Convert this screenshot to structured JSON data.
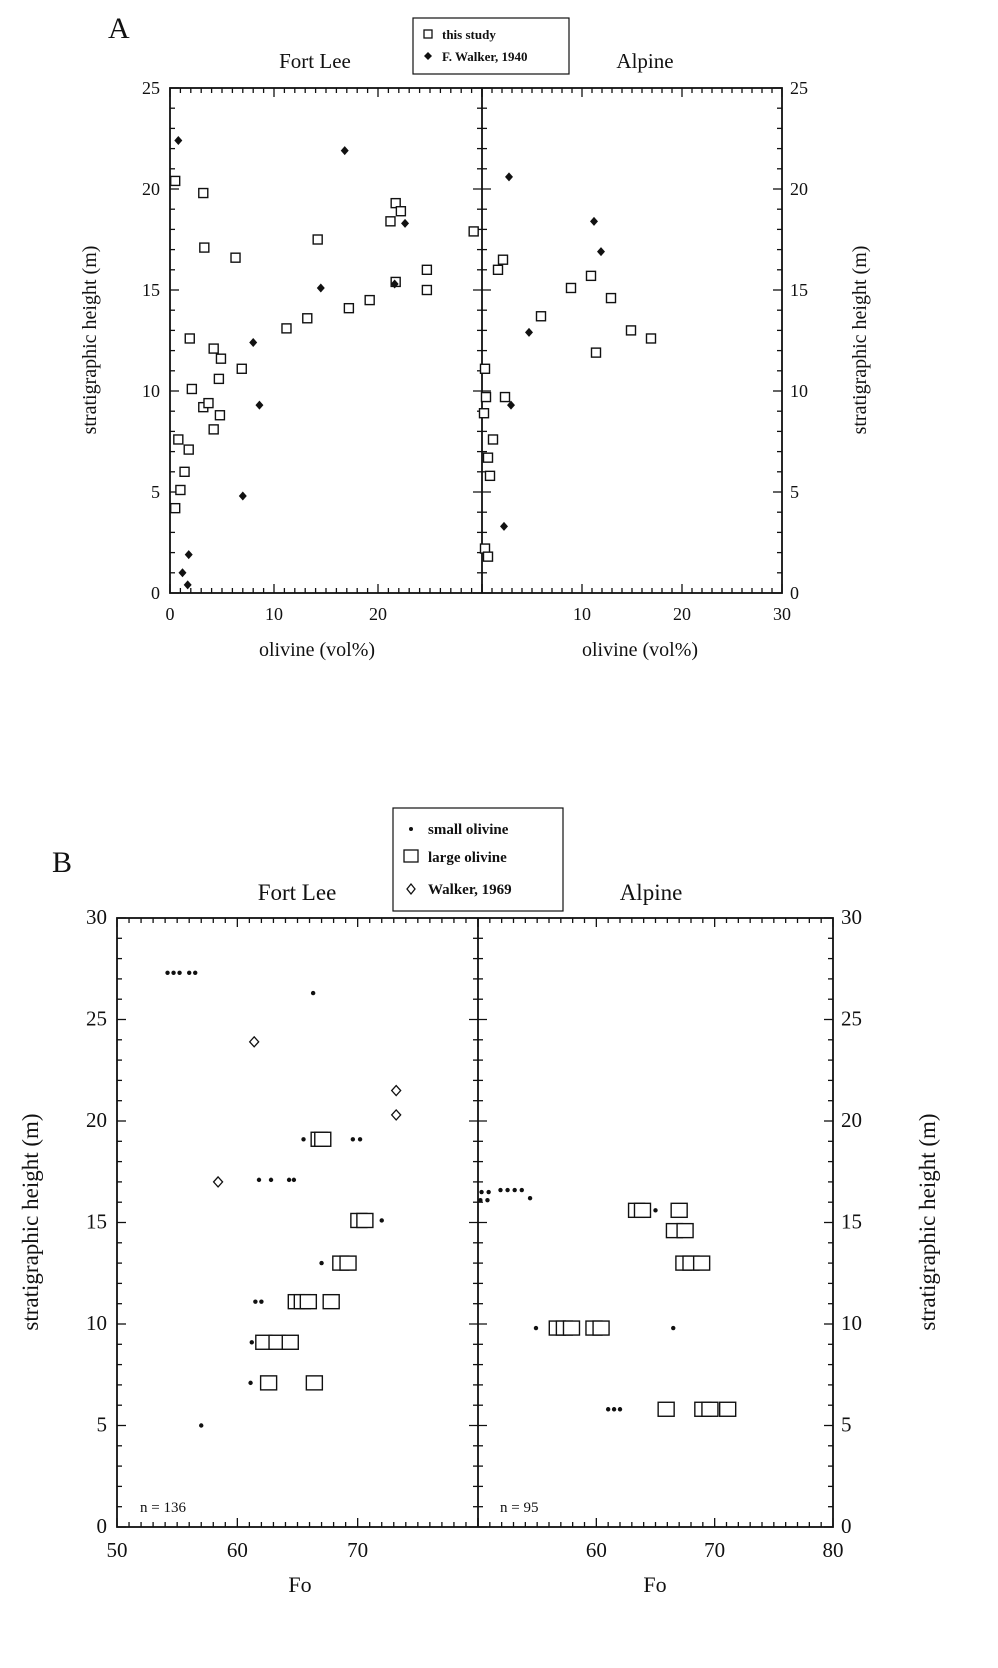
{
  "chart_data": [
    {
      "panel": "A",
      "type": "scatter",
      "legend": [
        "this study",
        "F. Walker, 1940"
      ],
      "legend_placement": "top-center",
      "ylabel": "stratigraphic height (m)",
      "ylim": [
        0,
        25
      ],
      "yticks": [
        "0",
        "5",
        "10",
        "15",
        "20",
        "25"
      ],
      "subplots": [
        {
          "title": "Fort Lee",
          "xlabel": "olivine   (vol%)",
          "xlim": [
            0,
            30
          ],
          "xticks": [
            "0",
            "10",
            "20"
          ],
          "series": [
            {
              "name": "this study",
              "marker": "open-square",
              "points": [
                [
                  0.5,
                  20.4
                ],
                [
                  3.2,
                  19.8
                ],
                [
                  3.3,
                  17.1
                ],
                [
                  6.3,
                  16.6
                ],
                [
                  0.8,
                  7.6
                ],
                [
                  1.8,
                  7.1
                ],
                [
                  1.4,
                  6.0
                ],
                [
                  1.0,
                  5.1
                ],
                [
                  0.5,
                  4.2
                ],
                [
                  1.9,
                  12.6
                ],
                [
                  4.2,
                  12.1
                ],
                [
                  4.9,
                  11.6
                ],
                [
                  6.9,
                  11.1
                ],
                [
                  4.7,
                  10.6
                ],
                [
                  2.1,
                  10.1
                ],
                [
                  3.2,
                  9.2
                ],
                [
                  3.7,
                  9.4
                ],
                [
                  4.8,
                  8.8
                ],
                [
                  4.2,
                  8.1
                ],
                [
                  14.2,
                  17.5
                ],
                [
                  21.2,
                  18.4
                ],
                [
                  21.7,
                  19.3
                ],
                [
                  22.2,
                  18.9
                ],
                [
                  29.2,
                  17.9
                ],
                [
                  24.7,
                  16.0
                ],
                [
                  24.7,
                  15.0
                ],
                [
                  21.7,
                  15.4
                ],
                [
                  11.2,
                  13.1
                ],
                [
                  13.2,
                  13.6
                ],
                [
                  17.2,
                  14.1
                ],
                [
                  19.2,
                  14.5
                ]
              ]
            },
            {
              "name": "F. Walker, 1940",
              "marker": "filled-diamond",
              "points": [
                [
                  0.8,
                  22.4
                ],
                [
                  1.8,
                  1.9
                ],
                [
                  1.2,
                  1.0
                ],
                [
                  1.7,
                  0.4
                ],
                [
                  7.0,
                  4.8
                ],
                [
                  8.6,
                  9.3
                ],
                [
                  8.0,
                  12.4
                ],
                [
                  14.5,
                  15.1
                ],
                [
                  16.8,
                  21.9
                ],
                [
                  21.6,
                  15.3
                ],
                [
                  22.6,
                  18.3
                ]
              ]
            }
          ]
        },
        {
          "title": "Alpine",
          "xlabel": "olivine   (vol%)",
          "xlim": [
            0,
            30
          ],
          "xticks": [
            "10",
            "20",
            "30"
          ],
          "series": [
            {
              "name": "this study",
              "marker": "open-square",
              "points": [
                [
                  2.1,
                  16.5
                ],
                [
                  1.6,
                  16.0
                ],
                [
                  0.3,
                  11.1
                ],
                [
                  0.4,
                  9.7
                ],
                [
                  0.2,
                  8.9
                ],
                [
                  1.1,
                  7.6
                ],
                [
                  0.6,
                  6.7
                ],
                [
                  0.8,
                  5.8
                ],
                [
                  0.3,
                  2.2
                ],
                [
                  0.6,
                  1.8
                ],
                [
                  2.3,
                  9.7
                ],
                [
                  5.9,
                  13.7
                ],
                [
                  8.9,
                  15.1
                ],
                [
                  10.9,
                  15.7
                ],
                [
                  12.9,
                  14.6
                ],
                [
                  11.4,
                  11.9
                ],
                [
                  14.9,
                  13.0
                ],
                [
                  16.9,
                  12.6
                ]
              ]
            },
            {
              "name": "F. Walker, 1940",
              "marker": "filled-diamond",
              "points": [
                [
                  2.7,
                  20.6
                ],
                [
                  2.2,
                  3.3
                ],
                [
                  2.9,
                  9.3
                ],
                [
                  4.7,
                  12.9
                ],
                [
                  11.2,
                  18.4
                ],
                [
                  11.9,
                  16.9
                ]
              ]
            }
          ]
        }
      ]
    },
    {
      "panel": "B",
      "type": "scatter",
      "legend": [
        "small olivine",
        "large olivine",
        "Walker, 1969"
      ],
      "legend_placement": "top-center",
      "ylabel": "stratigraphic height (m)",
      "ylim": [
        0,
        30
      ],
      "yticks": [
        "0",
        "5",
        "10",
        "15",
        "20",
        "25",
        "30"
      ],
      "subplots": [
        {
          "title": "Fort Lee",
          "xlabel": "Fo",
          "xlim": [
            50,
            80
          ],
          "xticks": [
            "50",
            "60",
            "70"
          ],
          "annotation": "n = 136",
          "series": [
            {
              "name": "small olivine",
              "marker": "small-dot",
              "points": [
                [
                  54.2,
                  27.3
                ],
                [
                  54.7,
                  27.3
                ],
                [
                  55.2,
                  27.3
                ],
                [
                  56.0,
                  27.3
                ],
                [
                  56.5,
                  27.3
                ],
                [
                  66.3,
                  26.3
                ],
                [
                  61.8,
                  17.1
                ],
                [
                  62.8,
                  17.1
                ],
                [
                  64.3,
                  17.1
                ],
                [
                  64.7,
                  17.1
                ],
                [
                  65.5,
                  19.1
                ],
                [
                  69.6,
                  19.1
                ],
                [
                  70.2,
                  19.1
                ],
                [
                  72.0,
                  15.1
                ],
                [
                  67.0,
                  13.0
                ],
                [
                  61.5,
                  11.1
                ],
                [
                  62.0,
                  11.1
                ],
                [
                  61.2,
                  9.1
                ],
                [
                  61.1,
                  7.1
                ],
                [
                  57.0,
                  5.0
                ]
              ]
            },
            {
              "name": "large olivine",
              "marker": "open-square",
              "points": [
                [
                  66.8,
                  19.1
                ],
                [
                  67.1,
                  19.1
                ],
                [
                  70.1,
                  15.1
                ],
                [
                  70.6,
                  15.1
                ],
                [
                  68.6,
                  13.0
                ],
                [
                  69.2,
                  13.0
                ],
                [
                  64.9,
                  11.1
                ],
                [
                  65.4,
                  11.1
                ],
                [
                  65.9,
                  11.1
                ],
                [
                  67.8,
                  11.1
                ],
                [
                  62.2,
                  9.1
                ],
                [
                  63.3,
                  9.1
                ],
                [
                  64.4,
                  9.1
                ],
                [
                  62.6,
                  7.1
                ],
                [
                  66.4,
                  7.1
                ]
              ]
            },
            {
              "name": "Walker, 1969",
              "marker": "open-diamond",
              "points": [
                [
                  61.4,
                  23.9
                ],
                [
                  73.2,
                  21.5
                ],
                [
                  73.2,
                  20.3
                ],
                [
                  58.4,
                  17.0
                ]
              ]
            }
          ]
        },
        {
          "title": "Alpine",
          "xlabel": "Fo",
          "xlim": [
            50,
            80
          ],
          "xticks": [
            "60",
            "70",
            "80"
          ],
          "annotation": "n = 95",
          "series": [
            {
              "name": "small olivine",
              "marker": "small-dot",
              "points": [
                [
                  50.3,
                  16.5
                ],
                [
                  50.9,
                  16.5
                ],
                [
                  51.9,
                  16.6
                ],
                [
                  52.5,
                  16.6
                ],
                [
                  53.1,
                  16.6
                ],
                [
                  53.7,
                  16.6
                ],
                [
                  54.4,
                  16.2
                ],
                [
                  50.2,
                  16.1
                ],
                [
                  50.8,
                  16.1
                ],
                [
                  65.0,
                  15.6
                ],
                [
                  66.5,
                  9.8
                ],
                [
                  54.9,
                  9.8
                ],
                [
                  61.0,
                  5.8
                ],
                [
                  61.5,
                  5.8
                ],
                [
                  62.0,
                  5.8
                ]
              ]
            },
            {
              "name": "large olivine",
              "marker": "open-square",
              "points": [
                [
                  63.4,
                  15.6
                ],
                [
                  63.9,
                  15.6
                ],
                [
                  67.0,
                  15.6
                ],
                [
                  66.6,
                  14.6
                ],
                [
                  67.5,
                  14.6
                ],
                [
                  67.4,
                  13.0
                ],
                [
                  68.0,
                  13.0
                ],
                [
                  68.9,
                  13.0
                ],
                [
                  56.7,
                  9.8
                ],
                [
                  57.3,
                  9.8
                ],
                [
                  57.9,
                  9.8
                ],
                [
                  59.8,
                  9.8
                ],
                [
                  60.4,
                  9.8
                ],
                [
                  65.9,
                  5.8
                ],
                [
                  69.0,
                  5.8
                ],
                [
                  69.6,
                  5.8
                ],
                [
                  71.1,
                  5.8
                ]
              ]
            }
          ]
        }
      ]
    }
  ],
  "labels": {
    "a_letter": "A",
    "a_left_title": "Fort Lee",
    "a_right_title": "Alpine",
    "a_legend_1": "this study",
    "a_legend_2": "F. Walker, 1940",
    "a_ylabel": "stratigraphic height (m)",
    "a_left_xlabel": "olivine   (vol%)",
    "a_right_xlabel": "olivine   (vol%)",
    "b_letter": "B",
    "b_left_title": "Fort Lee",
    "b_right_title": "Alpine",
    "b_legend_1": "small olivine",
    "b_legend_2": "large olivine",
    "b_legend_3": "Walker, 1969",
    "b_ylabel": "stratigraphic height (m)",
    "b_left_xlabel": "Fo",
    "b_right_xlabel": "Fo",
    "b_left_n": "n = 136",
    "b_right_n": "n = 95"
  }
}
